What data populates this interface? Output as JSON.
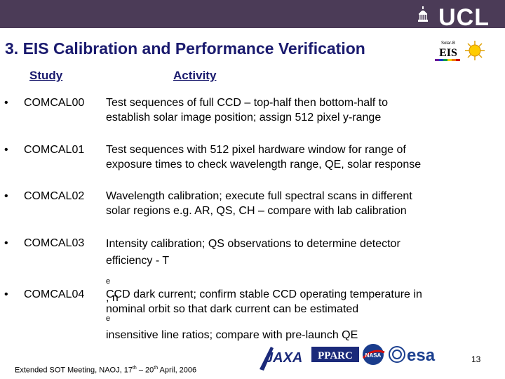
{
  "header": {
    "university_logo": "UCL",
    "eis_logo_text_top": "Solar-B",
    "eis_logo_text_main": "EIS"
  },
  "slide": {
    "title": "3. EIS Calibration and Performance Verification",
    "columns": {
      "study": "Study",
      "activity": "Activity"
    },
    "bullet_glyph": "•",
    "rows": [
      {
        "code": "COMCAL00",
        "line1": "Test sequences of full CCD – top-half then bottom-half to",
        "line2": "establish solar image position; assign 512 pixel y-range"
      },
      {
        "code": "COMCAL01",
        "line1": "Test sequences with 512 pixel hardware window for range of",
        "line2": "exposure times to check wavelength range, QE, solar response"
      },
      {
        "code": "COMCAL02",
        "line1": "Wavelength calibration; execute full spectral scans in different",
        "line2": "solar regions e.g. AR, QS, CH – compare with lab calibration"
      },
      {
        "code": "COMCAL03",
        "line1": "Intensity calibration;  QS observations to determine detector",
        "line2_a": "efficiency - T",
        "line2_sub1": "e",
        "line2_b": ", n",
        "line2_sub2": "e",
        "line2_c": " insensitive line ratios; compare with pre-launch QE"
      },
      {
        "code": "COMCAL04",
        "line1": "CCD dark current; confirm stable CCD operating temperature in",
        "line2": "nominal orbit so that dark current can be estimated"
      }
    ]
  },
  "footer": {
    "text_a": "Extended SOT Meeting, NAOJ, 17",
    "sup1": "th",
    "text_b": " – 20",
    "sup2": "th",
    "text_c": " April, 2006",
    "page_number": "13"
  },
  "partner_logos": {
    "jaxa": "JAXA",
    "pparc": "PPARC",
    "nasa": "NASA",
    "esa": "esa"
  },
  "colors": {
    "topbar": "#4b3b57",
    "title": "#1a1a6e",
    "pparc": "#1b2a7a",
    "esa": "#1b3f8f",
    "nasa": "#1a3c8c"
  }
}
